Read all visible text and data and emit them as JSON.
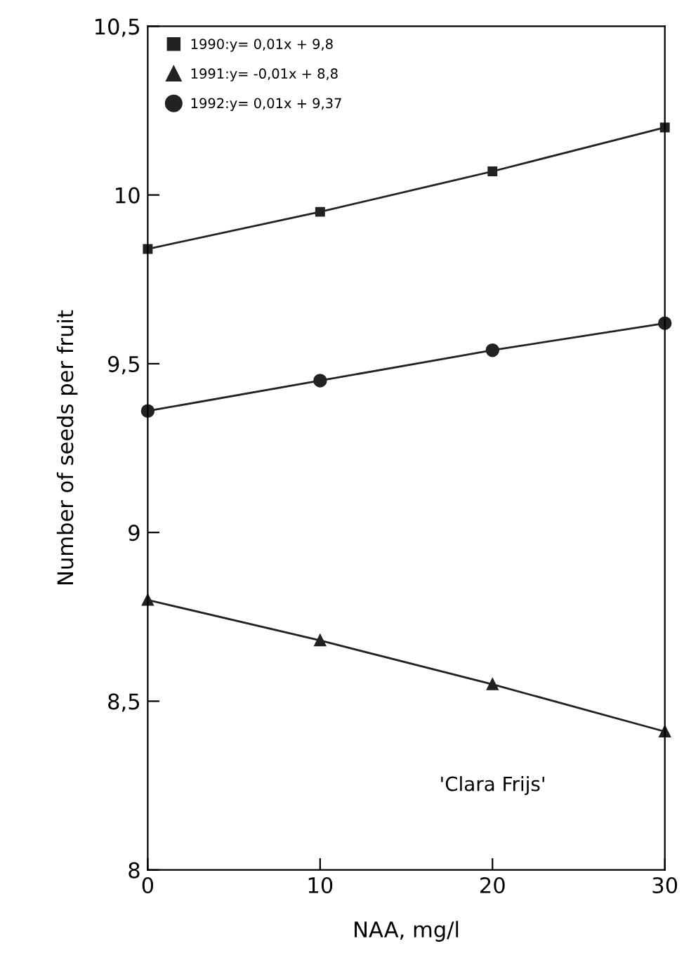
{
  "chart_data": {
    "type": "line",
    "xlabel": "NAA, mg/l",
    "ylabel": "Number of seeds per fruit",
    "x": [
      0,
      10,
      20,
      30
    ],
    "series": [
      {
        "name": "1990:y= 0,01x + 9,8",
        "color": "#222222",
        "marker": "square",
        "values": [
          9.84,
          9.95,
          10.07,
          10.2
        ]
      },
      {
        "name": "1991:y= -0,01x + 8,8",
        "color": "#222222",
        "marker": "triangle",
        "values": [
          8.8,
          8.68,
          8.55,
          8.41
        ]
      },
      {
        "name": "1992:y= 0,01x + 9,37",
        "color": "#222222",
        "marker": "circle",
        "values": [
          9.36,
          9.45,
          9.54,
          9.62
        ]
      }
    ],
    "xlim": [
      0,
      30
    ],
    "xticks": [
      0,
      10,
      20,
      30
    ],
    "ylim": [
      8,
      10.5
    ],
    "yticks": [
      8,
      {
        "value": 8.5,
        "label": "8,5"
      },
      9,
      {
        "value": 9.5,
        "label": "9,5"
      },
      10,
      {
        "value": 10.5,
        "label": "10,5"
      }
    ],
    "annotations": [
      "'Clara Frijs'"
    ],
    "legend": "top left",
    "grid": false,
    "line_style": "solid"
  }
}
